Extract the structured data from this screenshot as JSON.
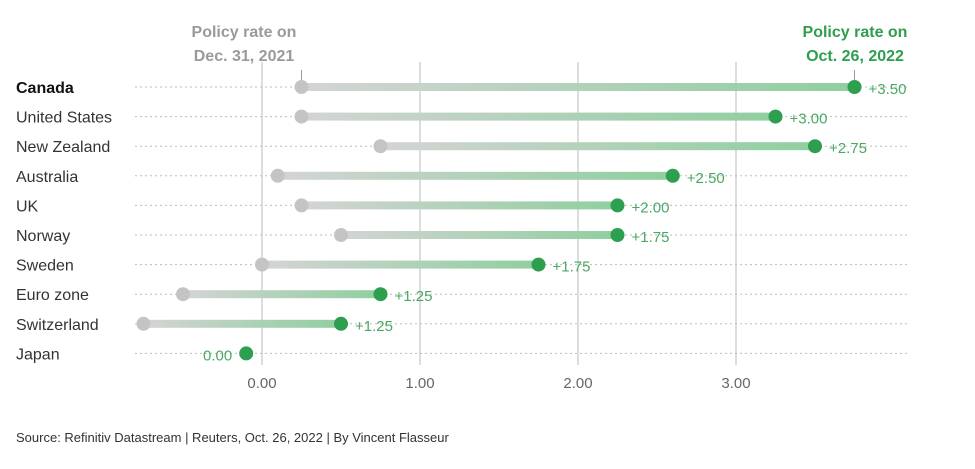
{
  "chart_data": {
    "type": "dumbbell",
    "header_start": [
      "Policy rate on",
      "Dec. 31, 2021"
    ],
    "header_end": [
      "Policy rate on",
      "Oct. 26, 2022"
    ],
    "xticks": [
      0,
      1,
      2,
      3
    ],
    "xtick_labels": [
      "0.00",
      "1.00",
      "2.00",
      "3.00"
    ],
    "xlim": [
      -0.8,
      4.0
    ],
    "grid": true,
    "rows": [
      {
        "category": "Canada",
        "start": 0.25,
        "end": 3.75,
        "change": "+3.50",
        "bold": true
      },
      {
        "category": "United States",
        "start": 0.25,
        "end": 3.25,
        "change": "+3.00",
        "bold": false
      },
      {
        "category": "New Zealand",
        "start": 0.75,
        "end": 3.5,
        "change": "+2.75",
        "bold": false
      },
      {
        "category": "Australia",
        "start": 0.1,
        "end": 2.6,
        "change": "+2.50",
        "bold": false
      },
      {
        "category": "UK",
        "start": 0.25,
        "end": 2.25,
        "change": "+2.00",
        "bold": false
      },
      {
        "category": "Norway",
        "start": 0.5,
        "end": 2.25,
        "change": "+1.75",
        "bold": false
      },
      {
        "category": "Sweden",
        "start": 0.0,
        "end": 1.75,
        "change": "+1.75",
        "bold": false
      },
      {
        "category": "Euro zone",
        "start": -0.5,
        "end": 0.75,
        "change": "+1.25",
        "bold": false
      },
      {
        "category": "Switzerland",
        "start": -0.75,
        "end": 0.5,
        "change": "+1.25",
        "bold": false
      },
      {
        "category": "Japan",
        "start": -0.1,
        "end": -0.1,
        "change": "0.00",
        "bold": false
      }
    ],
    "colors": {
      "start": "#c4c4c4",
      "end": "#2e9e4f",
      "value_text": "#4aa864",
      "grid": "#bbbbbb"
    }
  },
  "source": "Source: Refinitiv Datastream | Reuters, Oct. 26, 2022 | By Vincent Flasseur"
}
